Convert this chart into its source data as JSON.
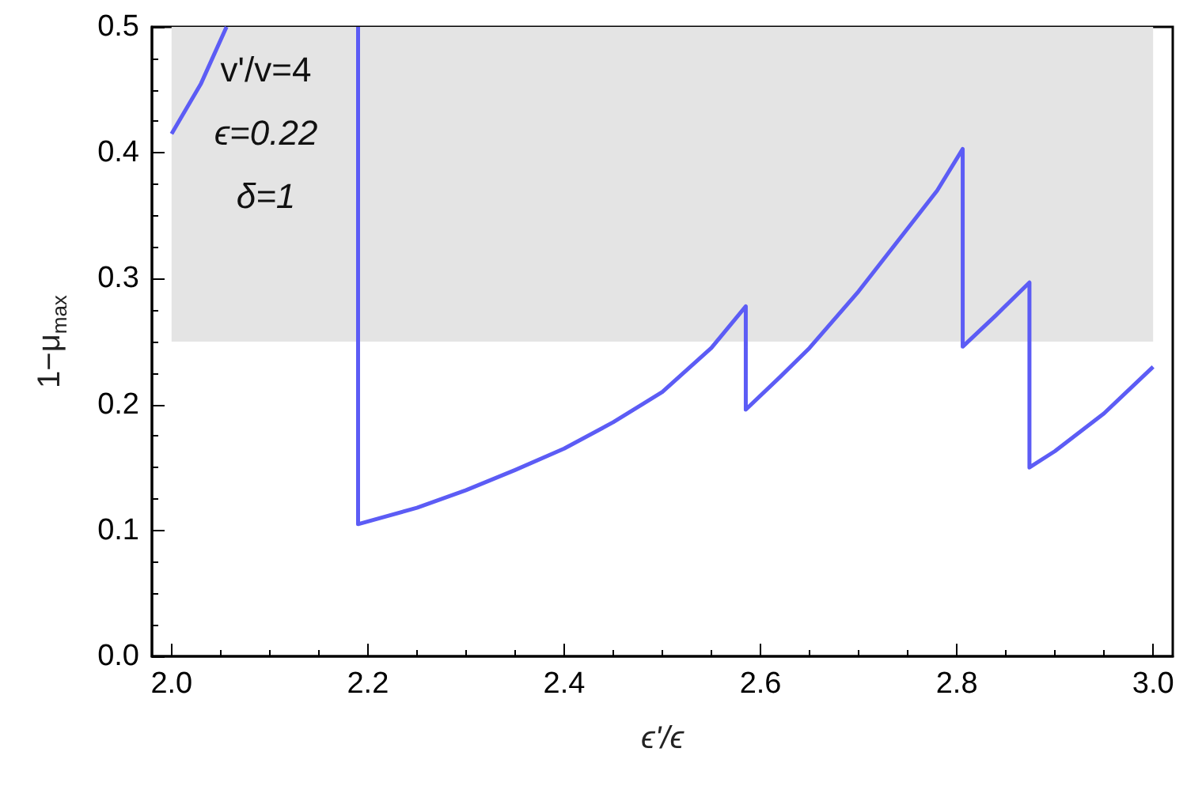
{
  "chart_data": {
    "type": "line",
    "xlabel": "ϵ'/ϵ",
    "ylabel": "1−μ$_{max}$",
    "x": [
      2.0,
      2.03,
      2.056,
      null,
      2.19,
      2.19,
      2.25,
      2.3,
      2.35,
      2.4,
      2.45,
      2.5,
      2.55,
      2.585,
      2.585,
      2.62,
      2.65,
      2.7,
      2.75,
      2.78,
      2.806,
      2.806,
      2.84,
      2.874,
      2.874,
      2.9,
      2.95,
      3.0
    ],
    "series": [
      {
        "color": "#5c5cf5",
        "values": [
          0.415,
          0.455,
          0.5,
          null,
          0.5,
          0.105,
          0.118,
          0.132,
          0.148,
          0.165,
          0.186,
          0.21,
          0.245,
          0.278,
          0.196,
          0.222,
          0.245,
          0.29,
          0.34,
          0.37,
          0.403,
          0.246,
          0.271,
          0.297,
          0.15,
          0.163,
          0.193,
          0.23
        ]
      }
    ],
    "xlim": [
      1.98,
      3.02
    ],
    "ylim": [
      0,
      0.5
    ],
    "xticks": [
      {
        "value": 2.0,
        "label": "2.0"
      },
      2.2,
      2.4,
      2.6,
      2.8,
      {
        "value": 3.0,
        "label": "3.0"
      }
    ],
    "yticks": [
      {
        "value": 0,
        "label": "0.0"
      },
      0.1,
      0.2,
      0.3,
      0.4,
      0.5
    ],
    "bands": [
      {
        "axis": "y",
        "from": 0.25,
        "to": 0.5,
        "color": "#e4e4e4"
      }
    ],
    "annotations": [
      "v'/v=4",
      "ϵ=0.22",
      "δ=1"
    ],
    "grid": false,
    "marker": "none",
    "line_style": "solid"
  }
}
